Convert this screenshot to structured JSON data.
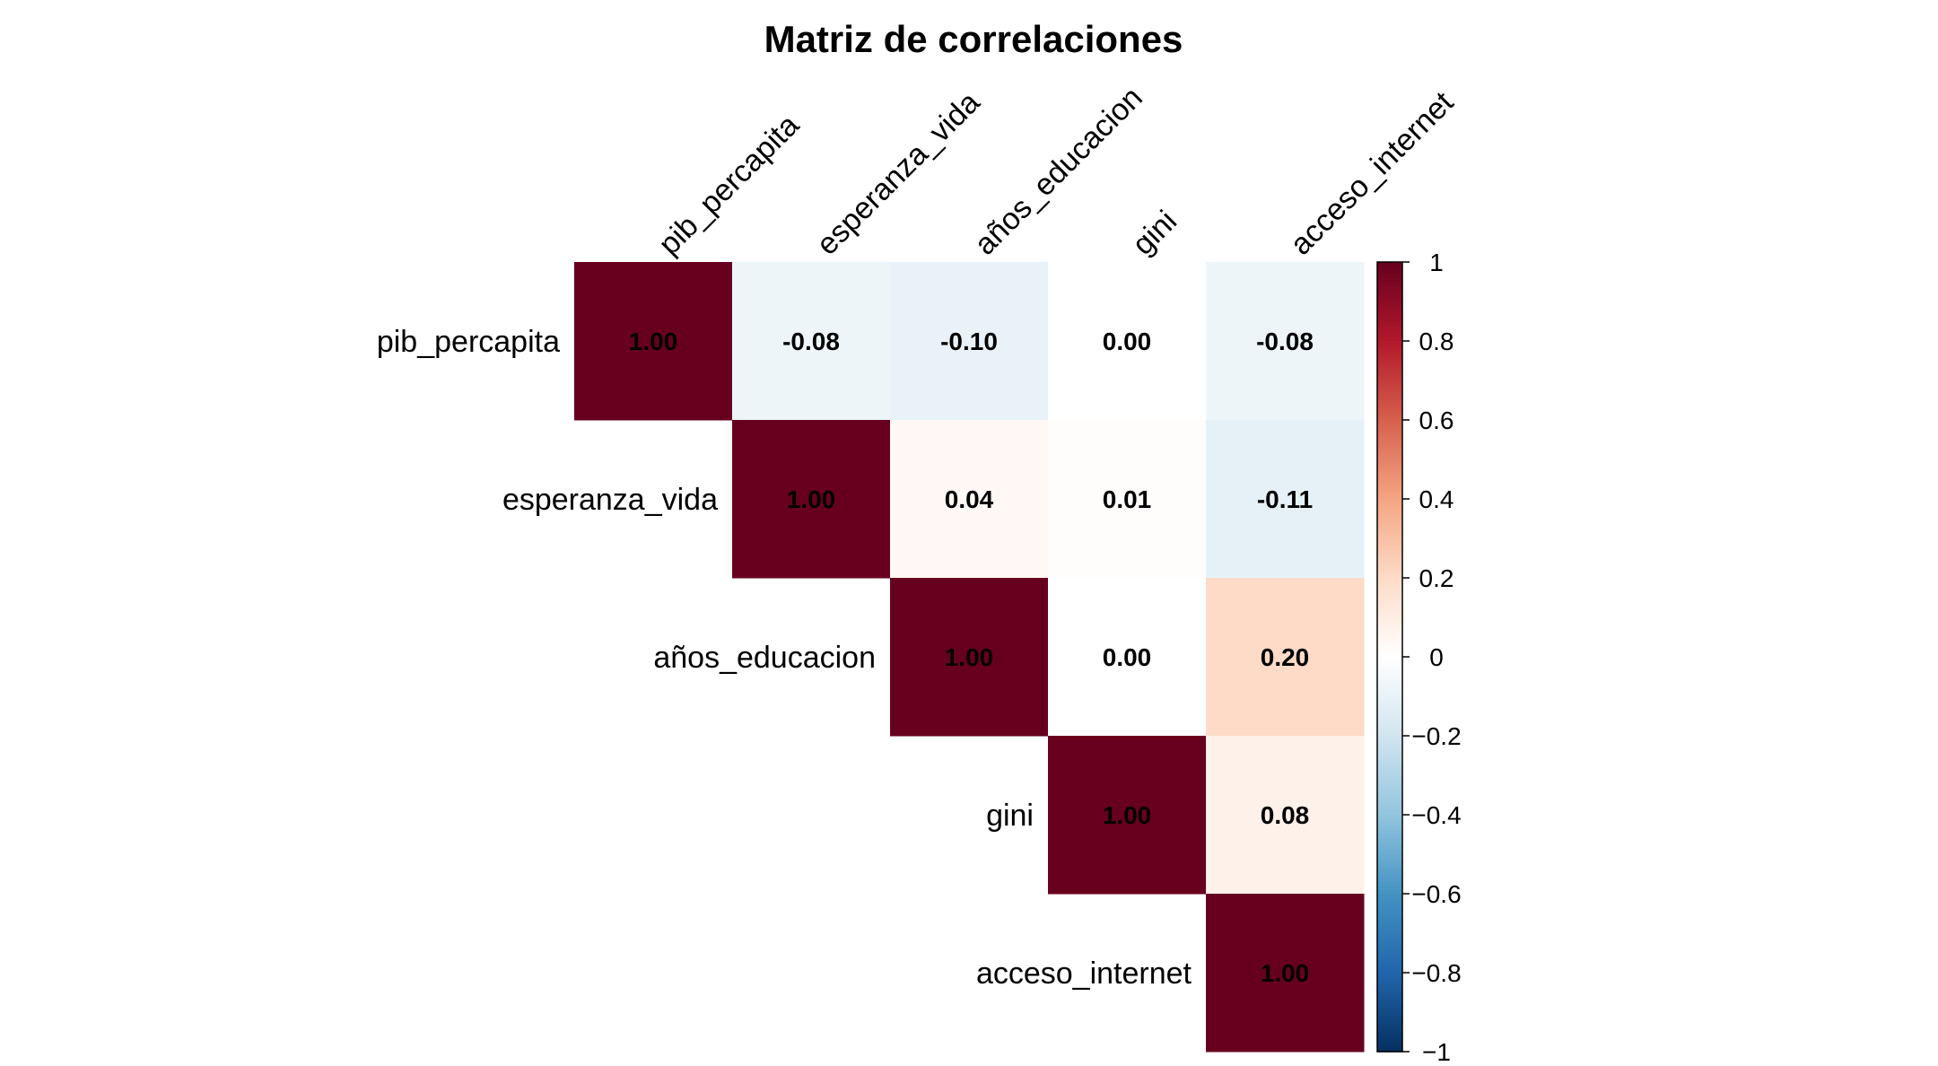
{
  "chart_data": {
    "type": "heatmap",
    "layout": "upper-triangle",
    "title": "Matriz de correlaciones",
    "variables": [
      "pib_percapita",
      "esperanza_vida",
      "años_educacion",
      "gini",
      "acceso_internet"
    ],
    "matrix": [
      [
        1.0,
        -0.08,
        -0.1,
        0.0,
        -0.08
      ],
      [
        -0.08,
        1.0,
        0.04,
        0.01,
        -0.11
      ],
      [
        -0.1,
        0.04,
        1.0,
        0.0,
        0.2
      ],
      [
        0.0,
        0.01,
        0.0,
        1.0,
        0.08
      ],
      [
        -0.08,
        -0.11,
        0.2,
        0.08,
        1.0
      ]
    ],
    "cell_labels": [
      [
        "1.00",
        "-0.08",
        "-0.10",
        "0.00",
        "-0.08"
      ],
      [
        "",
        "1.00",
        "0.04",
        "0.01",
        "-0.11"
      ],
      [
        "",
        "",
        "1.00",
        "0.00",
        "0.20"
      ],
      [
        "",
        "",
        "",
        "1.00",
        "0.08"
      ],
      [
        "",
        "",
        "",
        "",
        "1.00"
      ]
    ],
    "colorbar": {
      "range": [
        -1,
        1
      ],
      "ticks": [
        "1",
        "0.8",
        "0.6",
        "0.4",
        "0.2",
        "0",
        "−0.2",
        "−0.4",
        "−0.6",
        "−0.8",
        "−1"
      ],
      "tick_values": [
        1,
        0.8,
        0.6,
        0.4,
        0.2,
        0,
        -0.2,
        -0.4,
        -0.6,
        -0.8,
        -1
      ],
      "colors": [
        "#67001F",
        "#B2182B",
        "#D6604D",
        "#F4A582",
        "#FDDBC7",
        "#FFFFFF",
        "#D1E5F0",
        "#92C5DE",
        "#4393C3",
        "#2166AC",
        "#053061"
      ]
    }
  }
}
